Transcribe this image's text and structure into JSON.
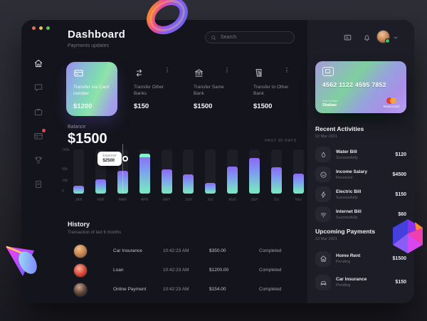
{
  "colors": {
    "accent_purple": "#8b5cf6",
    "accent_teal": "#79e6c3",
    "alert_red": "#f43f4f",
    "badge_orange": "#f5a524",
    "status_green": "#35c75a"
  },
  "window": {
    "title": "Dashboard",
    "subtitle": "Payments updates"
  },
  "topbar": {
    "search_placeholder": "Search"
  },
  "sidebar": {
    "items": [
      {
        "icon": "home",
        "cls": "active"
      },
      {
        "icon": "chat",
        "cls": ""
      },
      {
        "icon": "bag",
        "cls": ""
      },
      {
        "icon": "card",
        "cls": "badged"
      },
      {
        "icon": "trophy",
        "cls": ""
      },
      {
        "icon": "doc",
        "cls": ""
      }
    ]
  },
  "transfers": {
    "menu_glyph": "⋮",
    "items": [
      {
        "icon": "card",
        "label": "Transfer via Card number",
        "amount": "$1200",
        "cls": "primary"
      },
      {
        "icon": "arrows",
        "label": "Transfer Other Banks",
        "amount": "$150",
        "cls": ""
      },
      {
        "icon": "bank",
        "label": "Transfer Same Bank",
        "amount": "$1500",
        "cls": ""
      },
      {
        "icon": "invoice",
        "label": "Transfer to Other Bank",
        "amount": "$1500",
        "cls": ""
      }
    ]
  },
  "balance": {
    "label": "Balance",
    "amount": "$1500",
    "period": "PAST 30 DAYS"
  },
  "chart_data": {
    "type": "bar",
    "title": "Balance — past 30 days",
    "categories": [
      "JAN",
      "FEB",
      "MAR",
      "APR",
      "MAY",
      "JUN",
      "JUL",
      "AUG",
      "SEP",
      "Oct",
      "Nov"
    ],
    "values": [
      17000,
      33000,
      52000,
      90000,
      55000,
      44000,
      25000,
      62000,
      80000,
      60000,
      45000
    ],
    "ylim": [
      0,
      100000
    ],
    "yticks": [
      "100k",
      "50k",
      "10k",
      "0"
    ],
    "xlabel": "",
    "ylabel": "",
    "legend": "none",
    "grid": false,
    "tooltip": {
      "label": "Expense",
      "value": "$2500",
      "category": "MAR"
    },
    "cap_category": "APR"
  },
  "history": {
    "title": "History",
    "subtitle": "Transaction of last 6 months",
    "rows": [
      {
        "avatar": "a1",
        "name": "Car Insurance",
        "time": "10:42:23 AM",
        "amount": "$350.00",
        "status": "Completed"
      },
      {
        "avatar": "a2",
        "name": "Loan",
        "time": "10:42:23 AM",
        "amount": "$1200.00",
        "status": "Completed"
      },
      {
        "avatar": "a3",
        "name": "Online Payment",
        "time": "10:42:23 AM",
        "amount": "$154.00",
        "status": "Completed"
      }
    ]
  },
  "panel": {
    "card": {
      "number": "4562 1122 4595 7852",
      "holder_label": "Card Holder",
      "holder": "Shaban",
      "brand": "Mastercard"
    },
    "recent": {
      "title": "Recent Activities",
      "date": "02 Mar 2021",
      "items": [
        {
          "icon": "drop",
          "title": "Water Bill",
          "sub": "Successfully",
          "amount": "$120"
        },
        {
          "icon": "smile",
          "title": "Income Salary",
          "sub": "Received",
          "amount": "$4500"
        },
        {
          "icon": "zap",
          "title": "Electric Bill",
          "sub": "Successfully",
          "amount": "$150"
        },
        {
          "icon": "wifi",
          "title": "Internet Bill",
          "sub": "Successfully",
          "amount": "$60"
        }
      ]
    },
    "upcoming": {
      "title": "Upcoming Payments",
      "date": "13 Mar 2021",
      "items": [
        {
          "icon": "home",
          "title": "Home Rent",
          "sub": "Pending",
          "amount": "$1500"
        },
        {
          "icon": "car",
          "title": "Car Insurance",
          "sub": "Pending",
          "amount": "$150"
        }
      ]
    }
  }
}
